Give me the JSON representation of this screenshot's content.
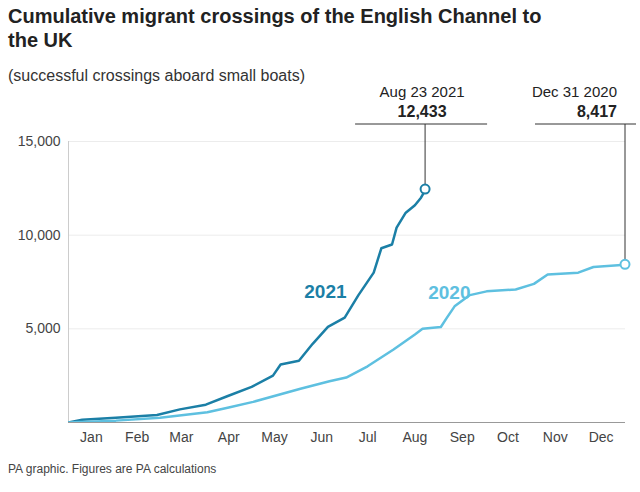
{
  "chart_data": {
    "type": "line",
    "title": "Cumulative migrant crossings of the English Channel to the UK",
    "subtitle": "(successful crossings aboard small boats)",
    "caption": "PA graphic. Figures are PA calculations",
    "series": [
      {
        "name": "2021",
        "color": "#1b7fa6",
        "x": [
          1,
          10,
          32,
          59,
          74,
          91,
          105,
          121,
          135,
          140,
          152,
          161,
          171,
          182,
          191,
          201,
          206,
          213,
          216,
          222,
          228,
          232,
          235
        ],
        "values": [
          0,
          150,
          250,
          400,
          700,
          950,
          1400,
          1900,
          2500,
          3100,
          3300,
          4200,
          5100,
          5600,
          6800,
          8000,
          9300,
          9500,
          10400,
          11200,
          11600,
          12000,
          12433
        ]
      },
      {
        "name": "2020",
        "color": "#5ec0e0",
        "x": [
          1,
          32,
          61,
          92,
          106,
          122,
          153,
          172,
          183,
          197,
          214,
          228,
          233,
          245,
          249,
          254,
          264,
          275,
          294,
          306,
          315,
          335,
          345,
          366
        ],
        "values": [
          0,
          100,
          250,
          550,
          800,
          1100,
          1800,
          2200,
          2400,
          3000,
          3900,
          4700,
          5000,
          5100,
          5600,
          6200,
          6800,
          7000,
          7100,
          7400,
          7900,
          8000,
          8300,
          8417
        ]
      }
    ],
    "annotations": [
      {
        "x": 235,
        "y": 12433,
        "text": "Aug 23 2021",
        "value_label": "12,433"
      },
      {
        "x": 366,
        "y": 8417,
        "text": "Dec 31 2020",
        "value_label": "8,417"
      }
    ],
    "xlim": [
      1,
      366
    ],
    "xticks": [
      {
        "value": 16,
        "label": "Jan"
      },
      {
        "value": 46,
        "label": "Feb"
      },
      {
        "value": 75,
        "label": "Mar"
      },
      {
        "value": 106,
        "label": "Apr"
      },
      {
        "value": 136,
        "label": "May"
      },
      {
        "value": 167,
        "label": "Jun"
      },
      {
        "value": 197,
        "label": "Jul"
      },
      {
        "value": 228,
        "label": "Aug"
      },
      {
        "value": 259,
        "label": "Sep"
      },
      {
        "value": 289,
        "label": "Oct"
      },
      {
        "value": 320,
        "label": "Nov"
      },
      {
        "value": 350,
        "label": "Dec"
      }
    ],
    "ylim": [
      0,
      15000
    ],
    "yticks": [
      {
        "value": 5000,
        "label": "5,000"
      },
      {
        "value": 10000,
        "label": "10,000"
      },
      {
        "value": 15000,
        "label": "15,000"
      }
    ],
    "grid": true
  }
}
